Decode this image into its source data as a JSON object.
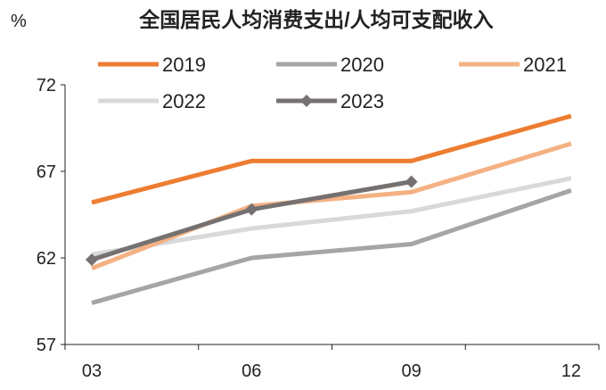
{
  "chart_data": {
    "type": "line",
    "title": "全国居民人均消费支出/人均可支配收入",
    "ylabel": "%",
    "xlabel": "",
    "categories": [
      "03",
      "06",
      "09",
      "12"
    ],
    "ylim": [
      57,
      72
    ],
    "yticks": [
      57,
      62,
      67,
      72
    ],
    "grid": false,
    "legend_position": "top",
    "series": [
      {
        "name": "2019",
        "color": "#ED7D31",
        "marker": "none",
        "values": [
          65.2,
          67.6,
          67.6,
          70.2
        ]
      },
      {
        "name": "2020",
        "color": "#A5A5A5",
        "marker": "none",
        "values": [
          59.4,
          62.0,
          62.8,
          65.9
        ]
      },
      {
        "name": "2021",
        "color": "#F4B183",
        "marker": "none",
        "values": [
          61.4,
          65.0,
          65.8,
          68.6
        ]
      },
      {
        "name": "2022",
        "color": "#D9D9D9",
        "marker": "none",
        "values": [
          62.2,
          63.7,
          64.7,
          66.6
        ]
      },
      {
        "name": "2023",
        "color": "#767171",
        "marker": "diamond",
        "values": [
          61.9,
          64.8,
          66.4,
          null
        ]
      }
    ]
  }
}
